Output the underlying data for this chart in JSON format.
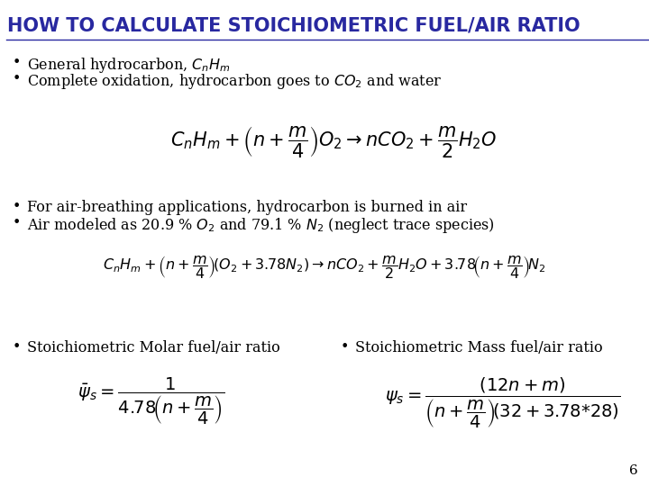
{
  "title": "HOW TO CALCULATE STOICHIOMETRIC FUEL/AIR RATIO",
  "title_color": "#2828A0",
  "title_fontsize": 15,
  "bg_color": "#FFFFFF",
  "bullet_color": "#000000",
  "bullet_fontsize": 11.5,
  "bullet1": "General hydrocarbon, $C_nH_m$",
  "bullet2": "Complete oxidation, hydrocarbon goes to $CO_2$ and water",
  "bullet3": "For air-breathing applications, hydrocarbon is burned in air",
  "bullet4": "Air modeled as 20.9 % $O_2$ and 79.1 % $N_2$ (neglect trace species)",
  "bullet5": "Stoichiometric Molar fuel/air ratio",
  "bullet6": "Stoichiometric Mass fuel/air ratio",
  "eq1": "$C_nH_m + \\left(n+\\dfrac{m}{4}\\right)O_2 \\rightarrow nCO_2 + \\dfrac{m}{2}H_2O$",
  "eq2": "$C_nH_m + \\left(n+\\dfrac{m}{4}\\right)\\!\\left(O_2+3.78N_2\\right)\\rightarrow nCO_2+\\dfrac{m}{2}H_2O+3.78\\!\\left(n+\\dfrac{m}{4}\\right)\\!N_2$",
  "eq3": "$\\bar{\\psi}_s = \\dfrac{1}{4.78\\!\\left(n+\\dfrac{m}{4}\\right)}$",
  "eq4": "$\\psi_s = \\dfrac{\\left(12n+m\\right)}{\\left(n+\\dfrac{m}{4}\\right)\\!(32+3.78{*}28)}$",
  "page_number": "6"
}
